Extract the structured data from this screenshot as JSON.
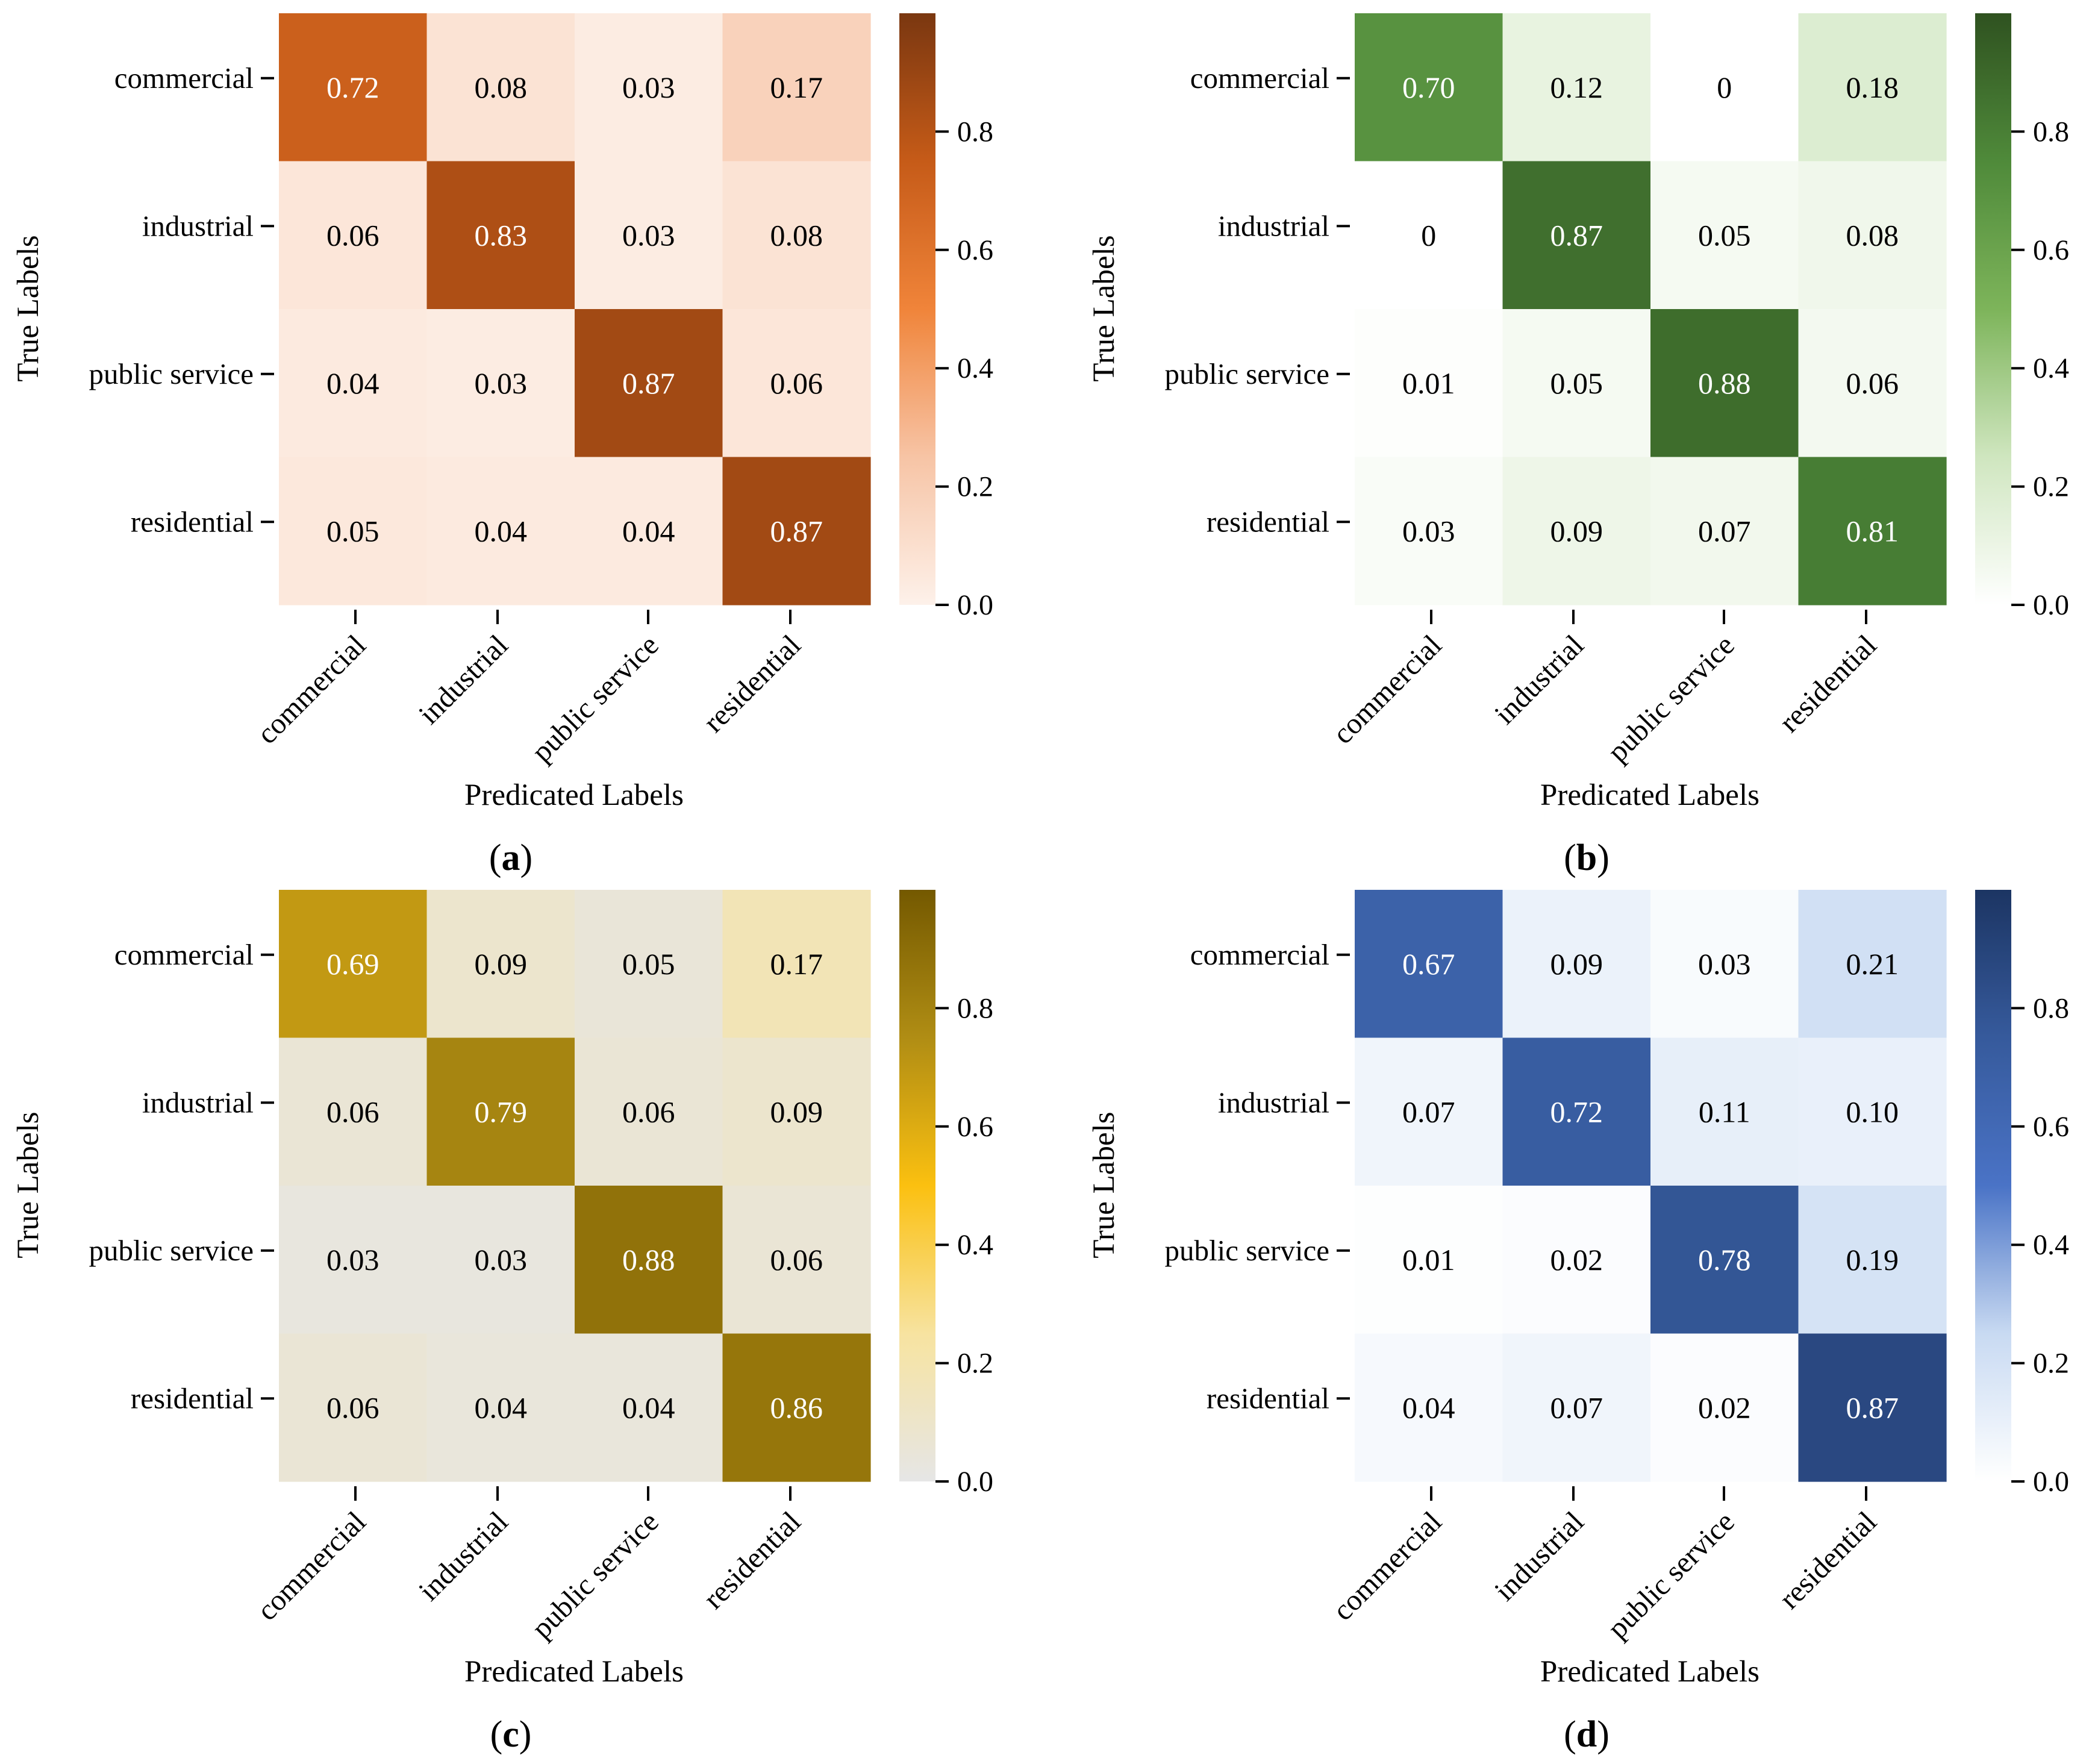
{
  "figure": {
    "x_label": "Predicated Labels",
    "y_label": "True Labels",
    "classes": [
      "commercial",
      "industrial",
      "public service",
      "residential"
    ],
    "colorbar_ticks": [
      "0.0",
      "0.2",
      "0.4",
      "0.6",
      "0.8"
    ]
  },
  "chart_data": [
    {
      "type": "heatmap",
      "panel": "a",
      "panel_label": {
        "open": "(",
        "letter": "a",
        "close": ")"
      },
      "xlabel": "Predicated Labels",
      "ylabel": "True Labels",
      "x_categories": [
        "commercial",
        "industrial",
        "public service",
        "residential"
      ],
      "y_categories": [
        "commercial",
        "industrial",
        "public service",
        "residential"
      ],
      "values": [
        [
          0.72,
          0.08,
          0.03,
          0.17
        ],
        [
          0.06,
          0.83,
          0.03,
          0.08
        ],
        [
          0.04,
          0.03,
          0.87,
          0.06
        ],
        [
          0.05,
          0.04,
          0.04,
          0.87
        ]
      ],
      "labels": [
        [
          "0.72",
          "0.08",
          "0.03",
          "0.17"
        ],
        [
          "0.06",
          "0.83",
          "0.03",
          "0.08"
        ],
        [
          "0.04",
          "0.03",
          "0.87",
          "0.06"
        ],
        [
          "0.05",
          "0.04",
          "0.04",
          "0.87"
        ]
      ],
      "colorscale": [
        "#fdf1ea",
        "#f7c4a5",
        "#f0843a",
        "#c65b18",
        "#7a3710"
      ],
      "colorbar_range": [
        0,
        1
      ],
      "colorbar_ticks": [
        0.0,
        0.2,
        0.4,
        0.6,
        0.8
      ]
    },
    {
      "type": "heatmap",
      "panel": "b",
      "panel_label": {
        "open": "(",
        "letter": "b",
        "close": ")"
      },
      "xlabel": "Predicated Labels",
      "ylabel": "True Labels",
      "x_categories": [
        "commercial",
        "industrial",
        "public service",
        "residential"
      ],
      "y_categories": [
        "commercial",
        "industrial",
        "public service",
        "residential"
      ],
      "values": [
        [
          0.7,
          0.12,
          0,
          0.18
        ],
        [
          0,
          0.87,
          0.05,
          0.08
        ],
        [
          0.01,
          0.05,
          0.88,
          0.06
        ],
        [
          0.03,
          0.09,
          0.07,
          0.81
        ]
      ],
      "labels": [
        [
          "0.70",
          "0.12",
          "0",
          "0.18"
        ],
        [
          "0",
          "0.87",
          "0.05",
          "0.08"
        ],
        [
          "0.01",
          "0.05",
          "0.88",
          "0.06"
        ],
        [
          "0.03",
          "0.09",
          "0.07",
          "0.81"
        ]
      ],
      "colorscale": [
        "#ffffff",
        "#cfe6bf",
        "#7db45a",
        "#4f8a3a",
        "#2f5220"
      ],
      "colorbar_range": [
        0,
        1
      ],
      "colorbar_ticks": [
        0.0,
        0.2,
        0.4,
        0.6,
        0.8
      ]
    },
    {
      "type": "heatmap",
      "panel": "c",
      "panel_label": {
        "open": "(",
        "letter": "c",
        "close": ")"
      },
      "xlabel": "Predicated Labels",
      "ylabel": "True Labels",
      "x_categories": [
        "commercial",
        "industrial",
        "public service",
        "residential"
      ],
      "y_categories": [
        "commercial",
        "industrial",
        "public service",
        "residential"
      ],
      "values": [
        [
          0.69,
          0.09,
          0.05,
          0.17
        ],
        [
          0.06,
          0.79,
          0.06,
          0.09
        ],
        [
          0.03,
          0.03,
          0.88,
          0.06
        ],
        [
          0.06,
          0.04,
          0.04,
          0.86
        ]
      ],
      "labels": [
        [
          "0.69",
          "0.09",
          "0.05",
          "0.17"
        ],
        [
          "0.06",
          "0.79",
          "0.06",
          "0.09"
        ],
        [
          "0.03",
          "0.03",
          "0.88",
          "0.06"
        ],
        [
          "0.06",
          "0.04",
          "0.04",
          "0.86"
        ]
      ],
      "colorscale": [
        "#e6e6e6",
        "#f7e3a0",
        "#fbc010",
        "#b08d14",
        "#745900"
      ],
      "colorbar_range": [
        0,
        1
      ],
      "colorbar_ticks": [
        0.0,
        0.2,
        0.4,
        0.6,
        0.8
      ]
    },
    {
      "type": "heatmap",
      "panel": "d",
      "panel_label": {
        "open": "(",
        "letter": "d",
        "close": ")"
      },
      "xlabel": "Predicated Labels",
      "ylabel": "True Labels",
      "x_categories": [
        "commercial",
        "industrial",
        "public service",
        "residential"
      ],
      "y_categories": [
        "commercial",
        "industrial",
        "public service",
        "residential"
      ],
      "values": [
        [
          0.67,
          0.09,
          0.03,
          0.21
        ],
        [
          0.07,
          0.72,
          0.11,
          0.1
        ],
        [
          0.01,
          0.02,
          0.78,
          0.19
        ],
        [
          0.04,
          0.07,
          0.02,
          0.87
        ]
      ],
      "labels": [
        [
          "0.67",
          "0.09",
          "0.03",
          "0.21"
        ],
        [
          "0.07",
          "0.72",
          "0.11",
          "0.10"
        ],
        [
          "0.01",
          "0.02",
          "0.78",
          "0.19"
        ],
        [
          "0.04",
          "0.07",
          "0.02",
          "0.87"
        ]
      ],
      "colorscale": [
        "#ffffff",
        "#c8daf2",
        "#4a73c6",
        "#365a9c",
        "#1c3563"
      ],
      "colorbar_range": [
        0,
        1
      ],
      "colorbar_ticks": [
        0.0,
        0.2,
        0.4,
        0.6,
        0.8
      ]
    }
  ]
}
